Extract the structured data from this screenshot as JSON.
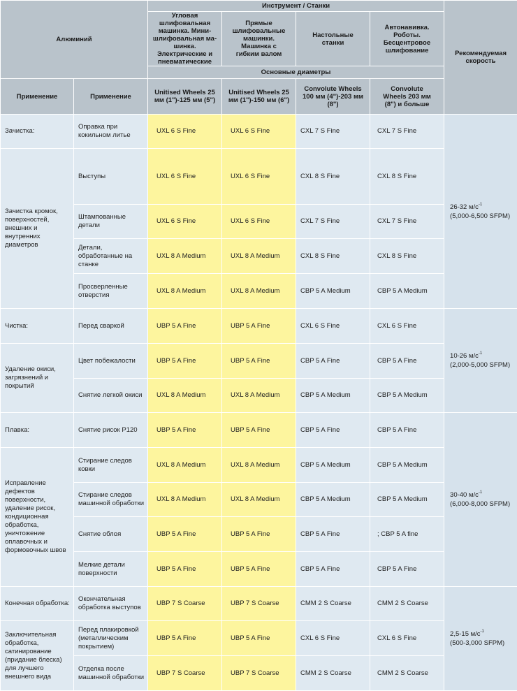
{
  "header": {
    "material": "Алюминий",
    "tools_group": "Инструмент / Станки",
    "speed": "Рекомендуемая скорость",
    "diameters": "Основные диаметры",
    "tools": [
      "Угловая шлифовальная машинка. Мини-шлифовальная ма-шинка. Электрические и пневматические",
      "Прямые шлифовальные машинки. Машинка с гибким валом",
      "Настольные станки",
      "Автонавивка. Роботы. Бесцентровое шлифование"
    ],
    "app_col1": "Применение",
    "app_col2": "Применение",
    "wheels": [
      "Unitised Wheels 25 мм (1\")-125 мм (5\")",
      "Unitised Wheels 25 мм (1\")-150 мм (6\")",
      "Convolute Wheels 100 мм (4\")-203 мм (8\")",
      "Convolute Wheels 203 мм (8\") и больше"
    ]
  },
  "groups": [
    {
      "label": "Зачистка:",
      "rows": 1
    },
    {
      "label": "Зачистка кромок, поверхностей, внешних и внутренних диаметров",
      "rows": 4
    },
    {
      "label": "Чистка:",
      "rows": 1
    },
    {
      "label": "Удаление окиси, загрязнений и покрытий",
      "rows": 2
    },
    {
      "label": "Плавка:",
      "rows": 1
    },
    {
      "label": "Исправление дефектов поверхности, удаление рисок, кондиционная обработка, уничтожение оплавочных и формовочных швов",
      "rows": 4
    },
    {
      "label": "Конечная обработка:",
      "rows": 1
    },
    {
      "label": "Заключительная обработка, сатинирование (придание блеска) для лучшего внешнего вида",
      "rows": 2
    }
  ],
  "rows": [
    {
      "app": "Оправка при кокильном литье",
      "v": [
        "UXL 6 S Fine",
        "UXL 6 S Fine",
        "CXL 7 S Fine",
        "CXL 7 S Fine"
      ]
    },
    {
      "app": "Выступы",
      "v": [
        "UXL 6 S Fine",
        "UXL 6 S Fine",
        "CXL 8 S Fine",
        "CXL 8 S Fine"
      ]
    },
    {
      "app": "Штампованные детали",
      "v": [
        "UXL 6 S Fine",
        "UXL 6 S Fine",
        "CXL 7 S Fine",
        "CXL 7 S Fine"
      ]
    },
    {
      "app": "Детали, обработанные на станке",
      "v": [
        "UXL 8 A Medium",
        "UXL 8 A Medium",
        "CXL 8 S Fine",
        "CXL 8 S Fine"
      ]
    },
    {
      "app": "Просверленные отверстия",
      "v": [
        "UXL 8 A Medium",
        "UXL 8 A Medium",
        "CBP 5 A Medium",
        "CBP 5 A Medium"
      ]
    },
    {
      "app": "Перед сваркой",
      "v": [
        "UBP 5 A Fine",
        "UBP 5 A Fine",
        "CXL 6 S Fine",
        "CXL 6 S Fine"
      ]
    },
    {
      "app": "Цвет побежалости",
      "v": [
        "UBP 5 A Fine",
        "UBP 5 A Fine",
        "CBP 5 A Fine",
        "CBP 5 A Fine"
      ]
    },
    {
      "app": "Снятие легкой окиси",
      "v": [
        "UXL 8 A Medium",
        "UXL 8 A Medium",
        "CBP 5 A Medium",
        "CBP 5 A Medium"
      ]
    },
    {
      "app": "Снятие рисок P120",
      "v": [
        "UBP 5 A Fine",
        "UBP 5 A Fine",
        "CBP 5 A Fine",
        "CBP 5 A Fine"
      ]
    },
    {
      "app": "Стирание следов ковки",
      "v": [
        "UXL 8 A Medium",
        "UXL 8 A Medium",
        "CBP 5 A Medium",
        "CBP 5 A Medium"
      ]
    },
    {
      "app": "Стирание следов машинной обработки",
      "v": [
        "UXL 8 A Medium",
        "UXL 8 A Medium",
        "CBP 5 A Medium",
        "CBP 5 A Medium"
      ]
    },
    {
      "app": "Снятие облоя",
      "v": [
        "UBP 5 A Fine",
        "UBP 5 A Fine",
        "CBP 5 A Fine",
        "; CBP 5 A fine"
      ]
    },
    {
      "app": "Мелкие детали поверхности",
      "v": [
        "UBP 5 A Fine",
        "UBP 5 A Fine",
        "CBP 5 A Fine",
        "CBP 5 A Fine"
      ]
    },
    {
      "app": "Окончательная обработка выступов",
      "v": [
        "UBP 7 S Coarse",
        "UBP 7 S Coarse",
        "CMM 2 S Coarse",
        "CMM 2 S Coarse"
      ]
    },
    {
      "app": "Перед плакировкой (металлическим покрытием)",
      "v": [
        "UBP 5 A Fine",
        "UBP 5 A Fine",
        "CXL 6 S Fine",
        "CXL 6 S Fine"
      ]
    },
    {
      "app": "Отделка после машинной обработки",
      "v": [
        "UBP 7 S Coarse",
        "UBP 7 S Coarse",
        "CMM 2 S Coarse",
        "CMM 2 S Coarse"
      ]
    }
  ],
  "speeds": [
    {
      "main": "26-32 м/с",
      "sup": "-1",
      "alt": "(5,000-6,500 SFPM)",
      "rows": 5
    },
    {
      "main": "10-26 м/с",
      "sup": "-1",
      "alt": "(2,000-5,000 SFPM)",
      "rows": 3
    },
    {
      "main": "30-40 м/с",
      "sup": "-1",
      "alt": "(6,000-8,000 SFPM)",
      "rows": 5
    },
    {
      "main": "2,5-15 м/с",
      "sup": "-1",
      "alt": "(500-3,000 SFPM)",
      "rows": 3
    }
  ]
}
